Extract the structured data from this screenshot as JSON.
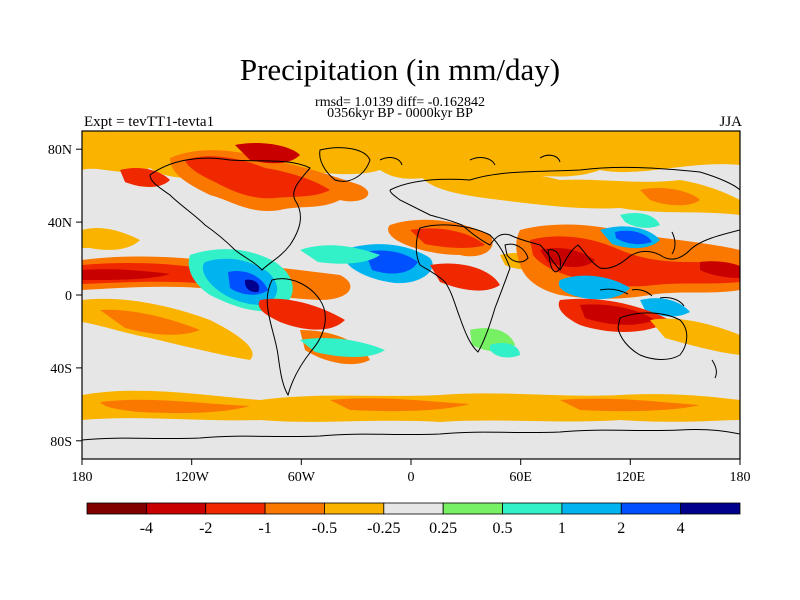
{
  "header": {
    "title": "Precipitation (in mm/day)",
    "stats": "rmsd= 1.0139 diff= -0.162842",
    "period": "0356kyr BP - 0000kyr BP",
    "experiment": "Expt = tevTT1-tevta1",
    "season": "JJA"
  },
  "axes": {
    "lon_ticks": [
      "180",
      "120W",
      "60W",
      "0",
      "60E",
      "120E",
      "180"
    ],
    "lat_ticks": [
      "80N",
      "40N",
      "0",
      "40S",
      "80S"
    ]
  },
  "colorbar": {
    "colors": [
      "#800000",
      "#c80000",
      "#f02800",
      "#fa7800",
      "#fab400",
      "#e6e6e6",
      "#78f064",
      "#32f0c8",
      "#00b4f0",
      "#0050ff",
      "#00008c"
    ],
    "labels": [
      "-4",
      "-2",
      "-1",
      "-0.5",
      "-0.25",
      "0.25",
      "0.5",
      "1",
      "2",
      "4"
    ]
  },
  "map_data": {
    "projection": "cylindrical equidistant",
    "region": "global",
    "field": "precipitation anomaly (mm/day)"
  }
}
